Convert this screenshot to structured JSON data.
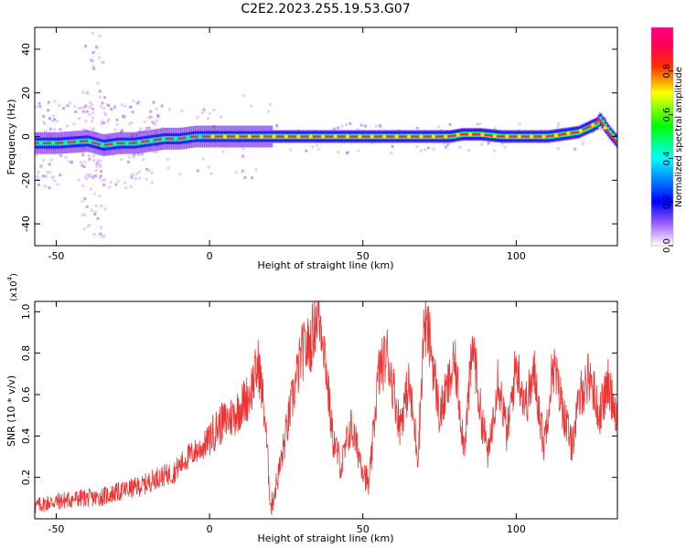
{
  "title": "C2E2.2023.255.19.53.G07",
  "chart_data": [
    {
      "type": "heatmap",
      "xlabel": "Height of straight line (km)",
      "ylabel": "Frequency (Hz)",
      "xlim": [
        -57,
        133
      ],
      "ylim": [
        -50,
        50
      ],
      "xticks": [
        -50,
        0,
        50,
        100
      ],
      "yticks": [
        -40,
        -20,
        0,
        20,
        40
      ],
      "colorbar": {
        "label": "Normalized spectral amplitude",
        "range": [
          0,
          1
        ],
        "ticks": [
          "0.0",
          "0.2",
          "0.4",
          "0.6",
          "0.8"
        ],
        "colors": [
          "#ffffff",
          "#8a2be2",
          "#0000ff",
          "#00ffff",
          "#00ff00",
          "#ffff00",
          "#ff0000",
          "#ff0080"
        ]
      },
      "ridge": {
        "x": [
          -57,
          -50,
          -40,
          -35,
          -30,
          -25,
          -20,
          -15,
          -10,
          -5,
          0,
          20,
          37,
          63,
          70,
          78,
          82,
          88,
          95,
          110,
          120,
          126,
          127,
          130,
          133
        ],
        "y": [
          -3,
          -3,
          -2,
          -4,
          -3,
          -3,
          -2,
          -1,
          -1,
          0,
          0,
          0,
          0,
          0,
          0,
          0,
          1,
          1,
          0,
          0,
          2,
          6,
          8,
          2,
          -3
        ]
      }
    },
    {
      "type": "line",
      "xlabel": "Height of straight line (km)",
      "ylabel": "SNR (10 * v/v)",
      "yscale_label": "(x10",
      "yscale_exp": "4",
      "xlim": [
        -57,
        133
      ],
      "ylim": [
        0,
        1.05
      ],
      "xticks": [
        -50,
        0,
        50,
        100
      ],
      "yticks": [
        0.2,
        0.4,
        0.6,
        0.8,
        1.0
      ],
      "line_color": "#ee3333",
      "series": [
        {
          "x": [
            -57,
            -52,
            -47,
            -42,
            -37,
            -32,
            -27,
            -22,
            -17,
            -12,
            -7,
            -2,
            3,
            8,
            13,
            16,
            18,
            20,
            23,
            26,
            30,
            33,
            35,
            37,
            40,
            43,
            46,
            50,
            52,
            55,
            58,
            62,
            65,
            68,
            70,
            72,
            75,
            78,
            80,
            83,
            86,
            88,
            91,
            94,
            97,
            100,
            103,
            106,
            109,
            112,
            115,
            118,
            121,
            124,
            127,
            130,
            133
          ],
          "y": [
            0.06,
            0.08,
            0.09,
            0.1,
            0.1,
            0.12,
            0.14,
            0.16,
            0.2,
            0.22,
            0.3,
            0.35,
            0.45,
            0.5,
            0.6,
            0.75,
            0.5,
            0.05,
            0.25,
            0.5,
            0.8,
            0.85,
            1.0,
            0.9,
            0.4,
            0.25,
            0.45,
            0.25,
            0.15,
            0.7,
            0.8,
            0.45,
            0.65,
            0.3,
            0.95,
            0.85,
            0.5,
            0.65,
            0.75,
            0.35,
            0.85,
            0.55,
            0.3,
            0.7,
            0.4,
            0.75,
            0.55,
            0.7,
            0.35,
            0.75,
            0.55,
            0.35,
            0.6,
            0.7,
            0.5,
            0.65,
            0.5
          ]
        }
      ]
    }
  ]
}
